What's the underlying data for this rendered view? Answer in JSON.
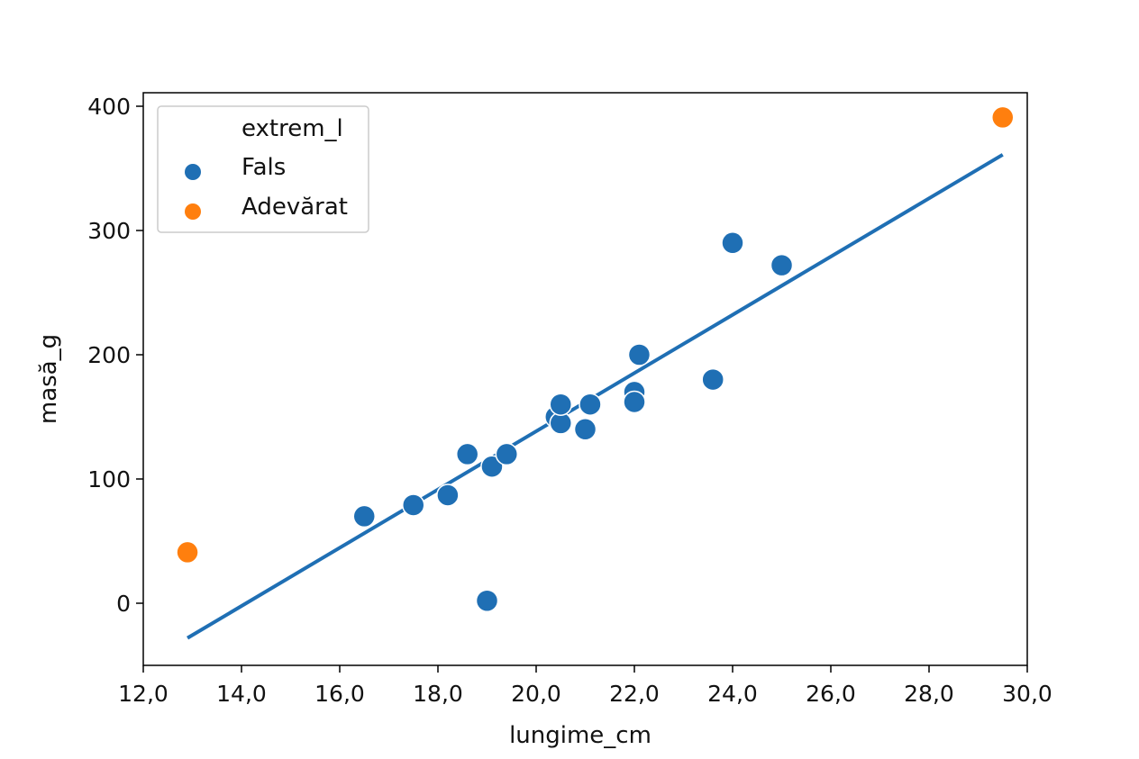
{
  "chart_data": {
    "type": "scatter",
    "title": "",
    "xlabel": "lungime_cm",
    "ylabel": "masă_g",
    "xlim": [
      12.0,
      30.0
    ],
    "ylim": [
      -50,
      410
    ],
    "xticks": [
      12.0,
      14.0,
      16.0,
      18.0,
      20.0,
      22.0,
      24.0,
      26.0,
      28.0,
      30.0
    ],
    "xtick_labels": [
      "12,0",
      "14,0",
      "16,0",
      "18,0",
      "20,0",
      "22,0",
      "24,0",
      "26,0",
      "28,0",
      "30,0"
    ],
    "yticks": [
      0,
      100,
      200,
      300,
      400
    ],
    "ytick_labels": [
      "0",
      "100",
      "200",
      "300",
      "400"
    ],
    "grid": false,
    "legend": {
      "title": "extrem_l",
      "position": "upper-left",
      "entries": [
        "Fals",
        "Adevărat"
      ]
    },
    "series": [
      {
        "name": "Fals",
        "color": "#1f6fb4",
        "points": [
          [
            16.5,
            70
          ],
          [
            17.5,
            79
          ],
          [
            18.2,
            87
          ],
          [
            18.6,
            120
          ],
          [
            19.0,
            2
          ],
          [
            19.1,
            110
          ],
          [
            19.4,
            120
          ],
          [
            20.4,
            150
          ],
          [
            20.5,
            145
          ],
          [
            20.5,
            160
          ],
          [
            21.0,
            140
          ],
          [
            21.1,
            160
          ],
          [
            22.0,
            170
          ],
          [
            22.0,
            162
          ],
          [
            22.1,
            200
          ],
          [
            23.6,
            180
          ],
          [
            24.0,
            290
          ],
          [
            25.0,
            272
          ]
        ]
      },
      {
        "name": "Adevărat",
        "color": "#ff7f0e",
        "points": [
          [
            12.9,
            41
          ],
          [
            29.5,
            391
          ]
        ]
      }
    ],
    "regression_line": {
      "color": "#1f6fb4",
      "points": [
        [
          12.9,
          -28
        ],
        [
          29.5,
          361
        ]
      ]
    }
  }
}
